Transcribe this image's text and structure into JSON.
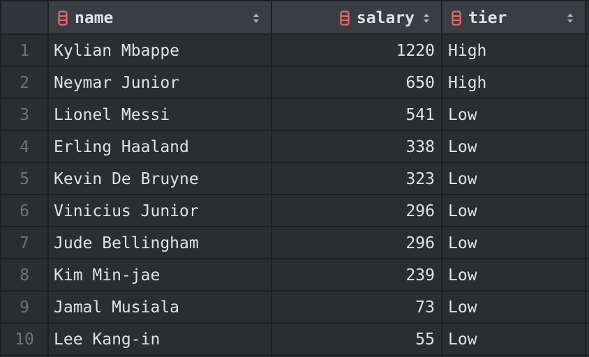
{
  "columns": {
    "name": {
      "label": "name",
      "icon": "table-column-icon"
    },
    "salary": {
      "label": "salary",
      "icon": "table-column-icon"
    },
    "tier": {
      "label": "tier",
      "icon": "table-column-icon"
    }
  },
  "rows": [
    {
      "num": "1",
      "name": "Kylian Mbappe",
      "salary": "1220",
      "tier": "High"
    },
    {
      "num": "2",
      "name": "Neymar Junior",
      "salary": "650",
      "tier": "High"
    },
    {
      "num": "3",
      "name": "Lionel Messi",
      "salary": "541",
      "tier": "Low"
    },
    {
      "num": "4",
      "name": "Erling Haaland",
      "salary": "338",
      "tier": "Low"
    },
    {
      "num": "5",
      "name": "Kevin De Bruyne",
      "salary": "323",
      "tier": "Low"
    },
    {
      "num": "6",
      "name": "Vinicius Junior",
      "salary": "296",
      "tier": "Low"
    },
    {
      "num": "7",
      "name": "Jude Bellingham",
      "salary": "296",
      "tier": "Low"
    },
    {
      "num": "8",
      "name": "Kim Min-jae",
      "salary": "239",
      "tier": "Low"
    },
    {
      "num": "9",
      "name": "Jamal Musiala",
      "salary": "73",
      "tier": "Low"
    },
    {
      "num": "10",
      "name": "Lee Kang-in",
      "salary": "55",
      "tier": "Low"
    }
  ],
  "colors": {
    "background": "#2b2d30",
    "header_background": "#3a3d42",
    "grid_line": "#1e1f22",
    "text": "#dfe1e5",
    "row_number": "#6f737a",
    "column_icon": "#e06c75"
  }
}
